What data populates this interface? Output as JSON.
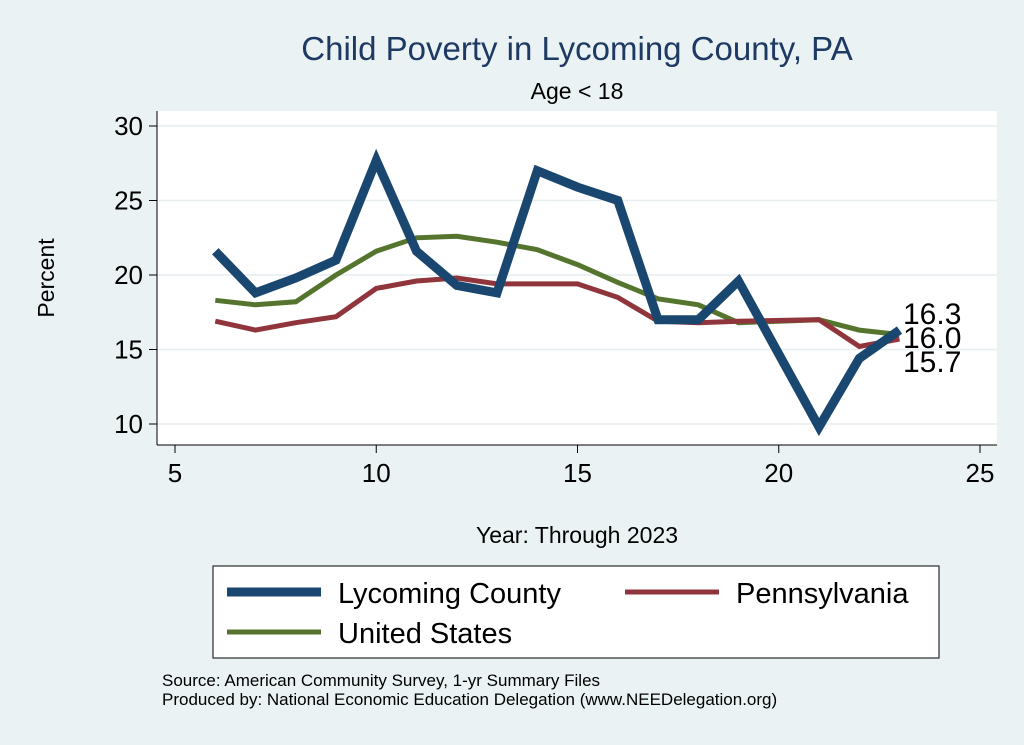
{
  "chart_data": {
    "type": "line",
    "title": "Child Poverty in Lycoming County, PA",
    "subtitle": "Age < 18",
    "xlabel": "Year: Through 2023",
    "ylabel": "Percent",
    "xlim": [
      5,
      25
    ],
    "ylim": [
      9.5,
      30.5
    ],
    "xticks": [
      5,
      10,
      15,
      20,
      25
    ],
    "yticks": [
      10,
      15,
      20,
      25,
      30
    ],
    "grid": true,
    "legend_position": "bottom",
    "series": [
      {
        "name": "Lycoming County",
        "color": "#1a476f",
        "x": [
          6,
          7,
          8,
          9,
          10,
          11,
          12,
          13,
          14,
          15,
          16,
          17,
          18,
          19,
          21,
          22,
          23
        ],
        "values": [
          21.6,
          18.8,
          19.8,
          21.0,
          27.7,
          21.6,
          19.3,
          18.8,
          27.0,
          25.9,
          25.0,
          17.0,
          17.0,
          19.6,
          9.8,
          14.4,
          16.3
        ],
        "end_label": "16.3"
      },
      {
        "name": "Pennsylvania",
        "color": "#90353b",
        "x": [
          6,
          7,
          8,
          9,
          10,
          11,
          12,
          13,
          14,
          15,
          16,
          17,
          18,
          19,
          21,
          22,
          23
        ],
        "values": [
          16.9,
          16.3,
          16.8,
          17.2,
          19.1,
          19.6,
          19.8,
          19.4,
          19.4,
          19.4,
          18.5,
          16.9,
          16.8,
          16.9,
          17.0,
          15.2,
          15.7
        ],
        "end_label": "15.7"
      },
      {
        "name": "United States",
        "color": "#55752f",
        "x": [
          6,
          7,
          8,
          9,
          10,
          11,
          12,
          13,
          14,
          15,
          16,
          17,
          18,
          19,
          21,
          22,
          23
        ],
        "values": [
          18.3,
          18.0,
          18.2,
          20.0,
          21.6,
          22.5,
          22.6,
          22.2,
          21.7,
          20.7,
          19.5,
          18.4,
          18.0,
          16.8,
          17.0,
          16.3,
          16.0
        ],
        "end_label": "16.0"
      }
    ]
  },
  "footer": {
    "source": "Source: American Community Survey, 1-yr Summary Files",
    "produced": "Produced by: National Economic Education Delegation (www.NEEDelegation.org)"
  }
}
